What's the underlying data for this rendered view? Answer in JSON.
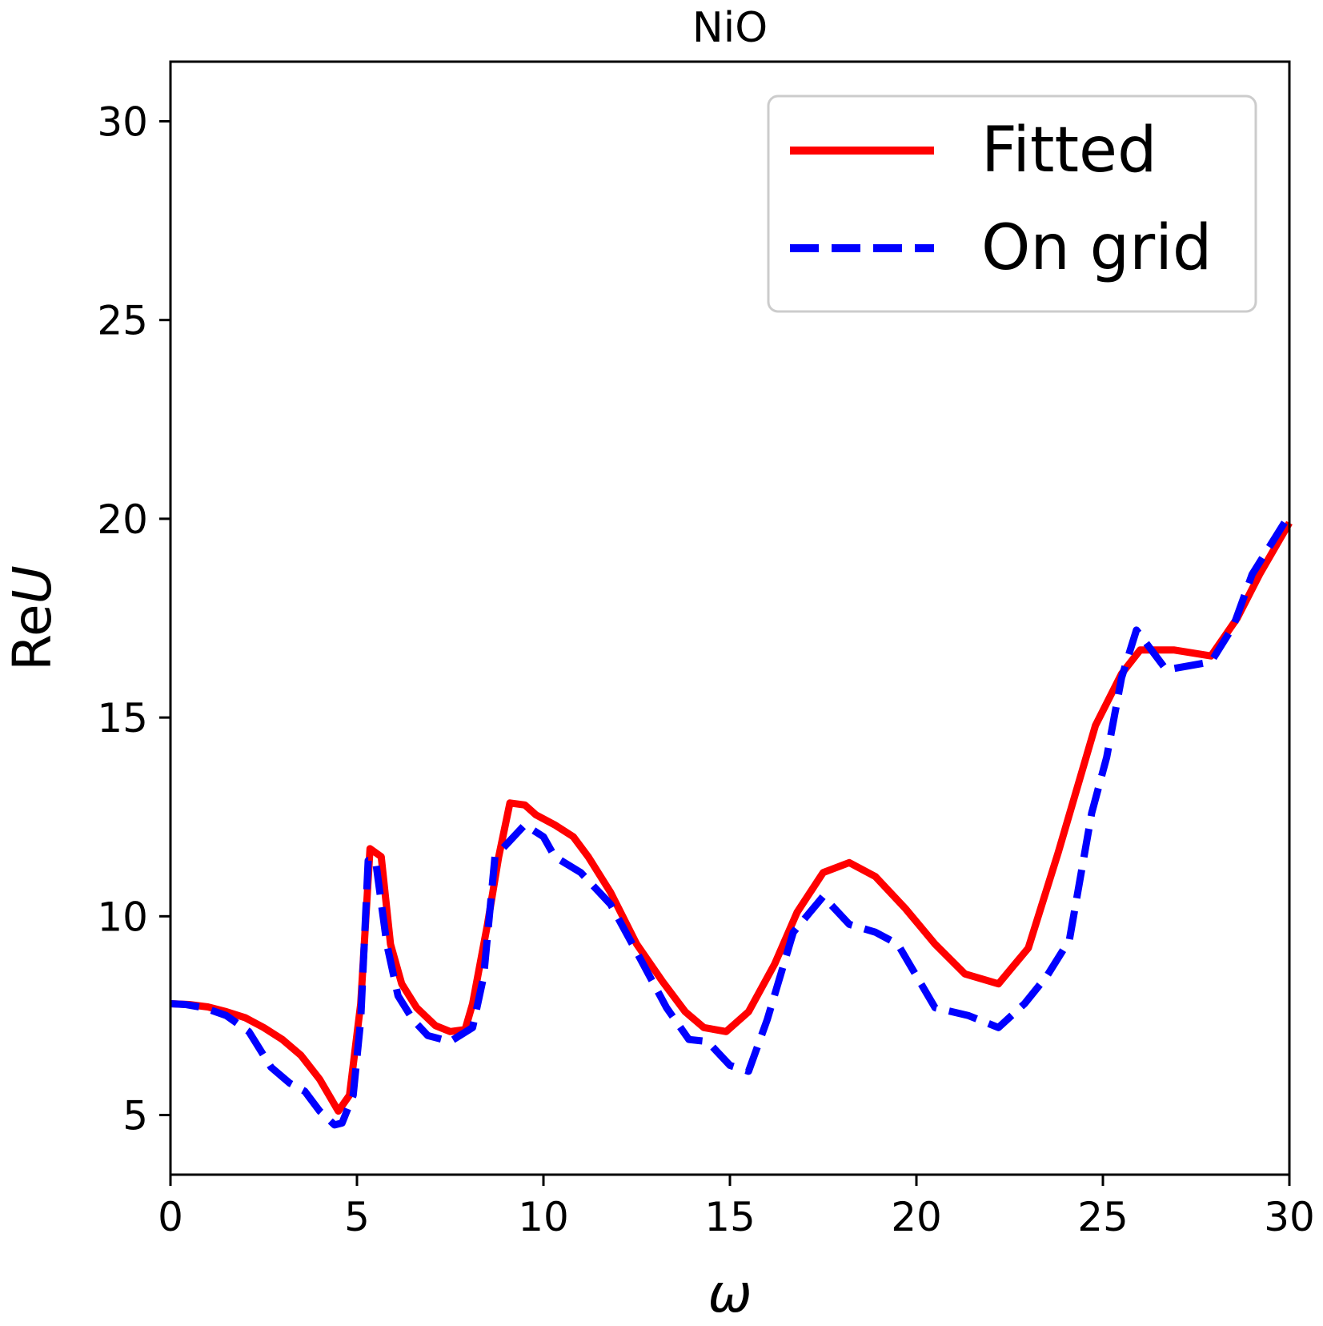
{
  "chart_data": {
    "type": "line",
    "title": "NiO",
    "xlabel": "ω",
    "ylabel_prefix": "Re",
    "ylabel_symbol": "U",
    "xlim": [
      0,
      30
    ],
    "ylim": [
      3.5,
      31.5
    ],
    "xticks": [
      0,
      5,
      10,
      15,
      20,
      25,
      30
    ],
    "yticks": [
      5,
      10,
      15,
      20,
      25,
      30
    ],
    "grid": false,
    "legend_position": "top-right",
    "series": [
      {
        "name": "Fitted",
        "color": "#ff0000",
        "style": "solid",
        "points": [
          [
            0,
            7.8
          ],
          [
            0.5,
            7.78
          ],
          [
            1,
            7.72
          ],
          [
            1.5,
            7.6
          ],
          [
            2,
            7.45
          ],
          [
            2.5,
            7.2
          ],
          [
            3,
            6.9
          ],
          [
            3.5,
            6.5
          ],
          [
            4,
            5.9
          ],
          [
            4.5,
            5.1
          ],
          [
            4.8,
            5.5
          ],
          [
            5.1,
            7.8
          ],
          [
            5.35,
            11.7
          ],
          [
            5.65,
            11.5
          ],
          [
            5.9,
            9.3
          ],
          [
            6.2,
            8.3
          ],
          [
            6.6,
            7.7
          ],
          [
            7.1,
            7.25
          ],
          [
            7.5,
            7.1
          ],
          [
            7.9,
            7.15
          ],
          [
            8.1,
            7.8
          ],
          [
            8.5,
            9.8
          ],
          [
            8.8,
            11.5
          ],
          [
            9.1,
            12.85
          ],
          [
            9.5,
            12.8
          ],
          [
            9.8,
            12.55
          ],
          [
            10.3,
            12.3
          ],
          [
            10.8,
            12
          ],
          [
            11.2,
            11.5
          ],
          [
            11.8,
            10.6
          ],
          [
            12.5,
            9.3
          ],
          [
            13.2,
            8.35
          ],
          [
            13.8,
            7.6
          ],
          [
            14.3,
            7.2
          ],
          [
            14.9,
            7.1
          ],
          [
            15.5,
            7.6
          ],
          [
            16.2,
            8.8
          ],
          [
            16.8,
            10.1
          ],
          [
            17.5,
            11.1
          ],
          [
            18.2,
            11.35
          ],
          [
            18.9,
            11
          ],
          [
            19.7,
            10.2
          ],
          [
            20.5,
            9.3
          ],
          [
            21.3,
            8.55
          ],
          [
            22.2,
            8.3
          ],
          [
            23,
            9.2
          ],
          [
            23.8,
            11.6
          ],
          [
            24.8,
            14.8
          ],
          [
            25.5,
            16.1
          ],
          [
            26,
            16.7
          ],
          [
            26.9,
            16.7
          ],
          [
            27.9,
            16.55
          ],
          [
            28.6,
            17.5
          ],
          [
            29.2,
            18.6
          ],
          [
            30,
            19.9
          ]
        ]
      },
      {
        "name": "On grid",
        "color": "#0000ff",
        "style": "dashed",
        "points": [
          [
            0,
            7.8
          ],
          [
            0.4,
            7.78
          ],
          [
            0.9,
            7.7
          ],
          [
            1.5,
            7.5
          ],
          [
            2.1,
            7.1
          ],
          [
            2.7,
            6.2
          ],
          [
            3.2,
            5.8
          ],
          [
            3.6,
            5.6
          ],
          [
            4,
            5.1
          ],
          [
            4.4,
            4.75
          ],
          [
            4.6,
            4.8
          ],
          [
            4.9,
            5.5
          ],
          [
            5.1,
            7.4
          ],
          [
            5.3,
            11.4
          ],
          [
            5.5,
            11.4
          ],
          [
            5.8,
            9.3
          ],
          [
            6.1,
            8
          ],
          [
            6.5,
            7.4
          ],
          [
            6.9,
            7
          ],
          [
            7.5,
            6.85
          ],
          [
            8.1,
            7.2
          ],
          [
            8.4,
            8.5
          ],
          [
            8.7,
            11.5
          ],
          [
            9,
            11.8
          ],
          [
            9.5,
            12.3
          ],
          [
            10,
            12
          ],
          [
            10.3,
            11.5
          ],
          [
            11,
            11.1
          ],
          [
            11.8,
            10.3
          ],
          [
            12.5,
            9.1
          ],
          [
            13.3,
            7.7
          ],
          [
            13.9,
            6.9
          ],
          [
            14.4,
            6.85
          ],
          [
            15,
            6.25
          ],
          [
            15.5,
            6.1
          ],
          [
            16,
            7.4
          ],
          [
            16.7,
            9.6
          ],
          [
            17.5,
            10.5
          ],
          [
            18.2,
            9.8
          ],
          [
            18.9,
            9.6
          ],
          [
            19.5,
            9.3
          ],
          [
            20.5,
            7.7
          ],
          [
            21.4,
            7.5
          ],
          [
            22.2,
            7.2
          ],
          [
            22.9,
            7.8
          ],
          [
            23.5,
            8.5
          ],
          [
            24.1,
            9.4
          ],
          [
            24.7,
            12.6
          ],
          [
            25.1,
            14
          ],
          [
            25.5,
            16
          ],
          [
            25.9,
            17.2
          ],
          [
            26.7,
            16.2
          ],
          [
            27.9,
            16.4
          ],
          [
            28.5,
            17.3
          ],
          [
            29,
            18.6
          ],
          [
            30,
            20.1
          ]
        ]
      }
    ]
  }
}
